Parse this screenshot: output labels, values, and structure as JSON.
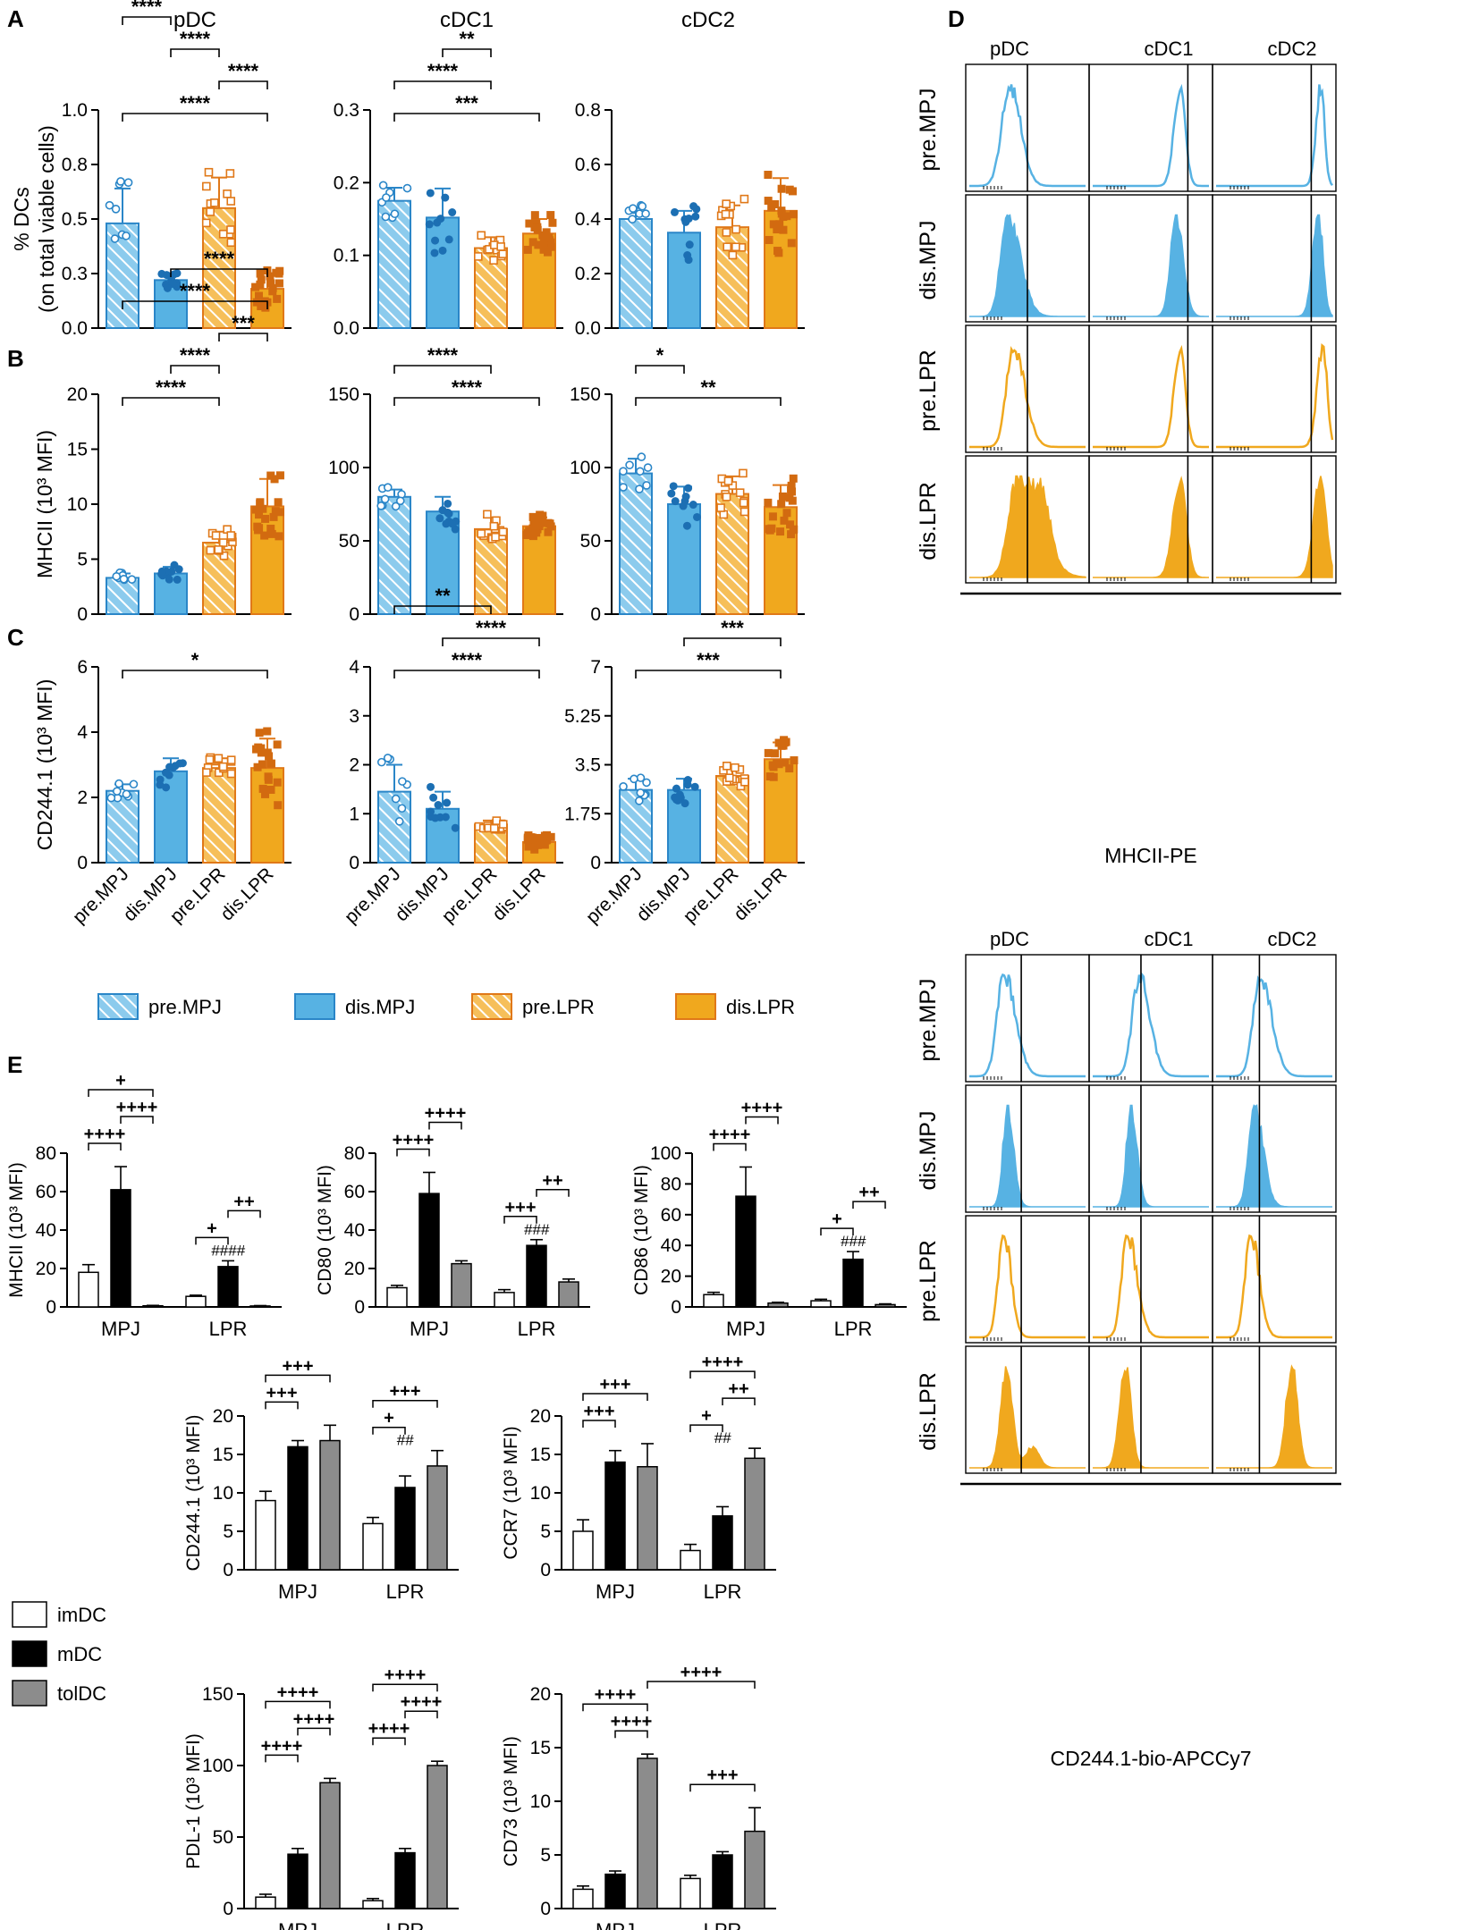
{
  "figure": {
    "panel_labels": [
      "A",
      "B",
      "C",
      "D",
      "E"
    ],
    "groups": [
      "pre.MPJ",
      "dis.MPJ",
      "pre.LPR",
      "dis.LPR"
    ],
    "colors": {
      "mpj": "#57b2e3",
      "mpj_dark": "#2a86c8",
      "lpr": "#f0a81e",
      "lpr_dark": "#e07818",
      "grey": "#8c8c8c"
    },
    "legend_groups": [
      "pre.MPJ",
      "dis.MPJ",
      "pre.LPR",
      "dis.LPR"
    ],
    "legend_dc": [
      "imDC",
      "mDC",
      "tolDC"
    ],
    "d_axis_top": "MHCII-PE",
    "d_axis_bottom": "CD244.1-bio-APCCy7",
    "d_rows": [
      "pre.MPJ",
      "dis.MPJ",
      "pre.LPR",
      "dis.LPR"
    ],
    "d_cols": [
      "pDC",
      "cDC1",
      "cDC2"
    ]
  },
  "chart_data": [
    {
      "id": "A-pDC",
      "type": "bar",
      "title": "pDC",
      "ylabel": "% DCs",
      "ylabel2": "(on total viable cells)",
      "ylim": [
        0,
        1.0
      ],
      "ticks": [
        "0.0",
        "0.3",
        "0.5",
        "0.8",
        "1.0"
      ],
      "tickvals": [
        0,
        0.25,
        0.5,
        0.75,
        1.0
      ],
      "categories": [
        "pre.MPJ",
        "dis.MPJ",
        "pre.LPR",
        "dis.LPR"
      ],
      "values": [
        0.48,
        0.22,
        0.55,
        0.18
      ],
      "errors": [
        0.16,
        0.03,
        0.14,
        0.07
      ],
      "sig": [
        {
          "a": 0,
          "b": 1,
          "label": "****"
        },
        {
          "a": 1,
          "b": 2,
          "label": "****"
        },
        {
          "a": 2,
          "b": 3,
          "label": "****"
        },
        {
          "a": 0,
          "b": 3,
          "label": "****"
        }
      ]
    },
    {
      "id": "A-cDC1",
      "type": "bar",
      "title": "cDC1",
      "ylim": [
        0,
        0.3
      ],
      "ticks": [
        "0.0",
        "0.1",
        "0.2",
        "0.3"
      ],
      "tickvals": [
        0,
        0.1,
        0.2,
        0.3
      ],
      "categories": [
        "pre.MPJ",
        "dis.MPJ",
        "pre.LPR",
        "dis.LPR"
      ],
      "values": [
        0.175,
        0.152,
        0.11,
        0.13
      ],
      "errors": [
        0.018,
        0.04,
        0.015,
        0.02
      ],
      "sig": [
        {
          "a": 1,
          "b": 2,
          "label": "**"
        },
        {
          "a": 0,
          "b": 2,
          "label": "****"
        },
        {
          "a": 0,
          "b": 3,
          "label": "***"
        }
      ]
    },
    {
      "id": "A-cDC2",
      "type": "bar",
      "title": "cDC2",
      "ylim": [
        0,
        0.8
      ],
      "ticks": [
        "0.0",
        "0.2",
        "0.4",
        "0.6",
        "0.8"
      ],
      "tickvals": [
        0,
        0.2,
        0.4,
        0.6,
        0.8
      ],
      "categories": [
        "pre.MPJ",
        "dis.MPJ",
        "pre.LPR",
        "dis.LPR"
      ],
      "values": [
        0.4,
        0.35,
        0.37,
        0.43
      ],
      "errors": [
        0.04,
        0.08,
        0.08,
        0.12
      ],
      "sig": []
    },
    {
      "id": "B-pDC",
      "type": "bar",
      "ylabel": "MHCII (10³ MFI)",
      "ylim": [
        0,
        20
      ],
      "ticks": [
        "0",
        "5",
        "10",
        "15",
        "20"
      ],
      "tickvals": [
        0,
        5,
        10,
        15,
        20
      ],
      "categories": [
        "pre.MPJ",
        "dis.MPJ",
        "pre.LPR",
        "dis.LPR"
      ],
      "values": [
        3.3,
        3.7,
        6.5,
        9.8
      ],
      "errors": [
        0.4,
        0.6,
        1.0,
        2.5
      ],
      "sig": [
        {
          "a": 1,
          "b": 3,
          "label": "****"
        },
        {
          "a": 0,
          "b": 3,
          "label": "****"
        },
        {
          "a": 2,
          "b": 3,
          "label": "***"
        },
        {
          "a": 1,
          "b": 2,
          "label": "****"
        },
        {
          "a": 0,
          "b": 2,
          "label": "****"
        }
      ]
    },
    {
      "id": "B-cDC1",
      "type": "bar",
      "ylim": [
        0,
        150
      ],
      "ticks": [
        "0",
        "50",
        "100",
        "150"
      ],
      "tickvals": [
        0,
        50,
        100,
        150
      ],
      "categories": [
        "pre.MPJ",
        "dis.MPJ",
        "pre.LPR",
        "dis.LPR"
      ],
      "values": [
        80,
        70,
        58,
        60
      ],
      "errors": [
        5,
        10,
        8,
        6
      ],
      "sig": [
        {
          "a": 0,
          "b": 2,
          "label": "****"
        },
        {
          "a": 0,
          "b": 3,
          "label": "****"
        }
      ]
    },
    {
      "id": "B-cDC2",
      "type": "bar",
      "ylim": [
        0,
        150
      ],
      "ticks": [
        "0",
        "50",
        "100",
        "150"
      ],
      "tickvals": [
        0,
        50,
        100,
        150
      ],
      "categories": [
        "pre.MPJ",
        "dis.MPJ",
        "pre.LPR",
        "dis.LPR"
      ],
      "values": [
        96,
        75,
        82,
        73
      ],
      "errors": [
        10,
        12,
        12,
        15
      ],
      "sig": [
        {
          "a": 0,
          "b": 1,
          "label": "*"
        },
        {
          "a": 0,
          "b": 3,
          "label": "**"
        }
      ]
    },
    {
      "id": "C-pDC",
      "type": "bar",
      "ylabel": "CD244.1 (10³ MFI)",
      "ylim": [
        0,
        6
      ],
      "ticks": [
        "0",
        "2",
        "4",
        "6"
      ],
      "tickvals": [
        0,
        2,
        4,
        6
      ],
      "categories": [
        "pre.MPJ",
        "dis.MPJ",
        "pre.LPR",
        "dis.LPR"
      ],
      "values": [
        2.2,
        2.8,
        2.9,
        2.9
      ],
      "errors": [
        0.2,
        0.4,
        0.3,
        0.9
      ],
      "sig": [
        {
          "a": 0,
          "b": 3,
          "label": "*"
        }
      ],
      "xlabels": true
    },
    {
      "id": "C-cDC1",
      "type": "bar",
      "ylim": [
        0,
        4
      ],
      "ticks": [
        "0",
        "1",
        "2",
        "3",
        "4"
      ],
      "tickvals": [
        0,
        1,
        2,
        3,
        4
      ],
      "categories": [
        "pre.MPJ",
        "dis.MPJ",
        "pre.LPR",
        "dis.LPR"
      ],
      "values": [
        1.45,
        1.1,
        0.78,
        0.42
      ],
      "errors": [
        0.55,
        0.35,
        0.08,
        0.12
      ],
      "sig": [
        {
          "a": 0,
          "b": 2,
          "label": "**"
        },
        {
          "a": 1,
          "b": 3,
          "label": "****"
        },
        {
          "a": 0,
          "b": 3,
          "label": "****"
        }
      ],
      "xlabels": true
    },
    {
      "id": "C-cDC2",
      "type": "bar",
      "ylim": [
        0,
        7
      ],
      "ticks": [
        "0",
        "1.75",
        "3.5",
        "5.25",
        "7"
      ],
      "tickvals": [
        0,
        1.75,
        3.5,
        5.25,
        7
      ],
      "categories": [
        "pre.MPJ",
        "dis.MPJ",
        "pre.LPR",
        "dis.LPR"
      ],
      "values": [
        2.6,
        2.6,
        3.1,
        3.7
      ],
      "errors": [
        0.4,
        0.4,
        0.3,
        0.6
      ],
      "sig": [
        {
          "a": 1,
          "b": 3,
          "label": "***"
        },
        {
          "a": 0,
          "b": 3,
          "label": "***"
        }
      ],
      "xlabels": true
    },
    {
      "id": "E-MHCII",
      "type": "grouped_bar",
      "ylabel": "MHCII (10³ MFI)",
      "ylim": [
        0,
        80
      ],
      "ticks": [
        "0",
        "20",
        "40",
        "60",
        "80"
      ],
      "tickvals": [
        0,
        20,
        40,
        60,
        80
      ],
      "groups": [
        "MPJ",
        "LPR"
      ],
      "series": [
        {
          "name": "imDC",
          "values": [
            18,
            5.5
          ],
          "errors": [
            4,
            0.6
          ]
        },
        {
          "name": "mDC",
          "values": [
            61,
            21
          ],
          "errors": [
            12,
            3
          ]
        },
        {
          "name": "tolDC",
          "values": [
            0.6,
            0.5
          ],
          "errors": [
            0.2,
            0.2
          ]
        }
      ],
      "sig": [
        {
          "g": 0,
          "a": 0,
          "b": 1,
          "label": "++++"
        },
        {
          "g": 0,
          "a": 1,
          "b": 2,
          "label": "++++"
        },
        {
          "g": 0,
          "a": 0,
          "b": 2,
          "label": "+"
        },
        {
          "g": 1,
          "a": 0,
          "b": 1,
          "label": "+"
        },
        {
          "g": 1,
          "a": 1,
          "b": 2,
          "label": "++"
        }
      ],
      "hash": {
        "g": 1,
        "label": "####"
      }
    },
    {
      "id": "E-CD80",
      "type": "grouped_bar",
      "ylabel": "CD80 (10³ MFI)",
      "ylim": [
        0,
        80
      ],
      "ticks": [
        "0",
        "20",
        "40",
        "60",
        "80"
      ],
      "tickvals": [
        0,
        20,
        40,
        60,
        80
      ],
      "groups": [
        "MPJ",
        "LPR"
      ],
      "series": [
        {
          "name": "imDC",
          "values": [
            10,
            7.5
          ],
          "errors": [
            1.2,
            1.5
          ]
        },
        {
          "name": "mDC",
          "values": [
            59,
            32
          ],
          "errors": [
            11,
            3
          ]
        },
        {
          "name": "tolDC",
          "values": [
            22.5,
            13
          ],
          "errors": [
            1.5,
            1.5
          ]
        }
      ],
      "sig": [
        {
          "g": 0,
          "a": 0,
          "b": 1,
          "label": "++++"
        },
        {
          "g": 0,
          "a": 1,
          "b": 2,
          "label": "++++"
        },
        {
          "g": 1,
          "a": 0,
          "b": 1,
          "label": "+++"
        },
        {
          "g": 1,
          "a": 1,
          "b": 2,
          "label": "++"
        }
      ],
      "hash": {
        "g": 1,
        "label": "###"
      }
    },
    {
      "id": "E-CD86",
      "type": "grouped_bar",
      "ylabel": "CD86 (10³ MFI)",
      "ylim": [
        0,
        100
      ],
      "ticks": [
        "0",
        "20",
        "40",
        "60",
        "80",
        "100"
      ],
      "tickvals": [
        0,
        20,
        40,
        60,
        80,
        100
      ],
      "groups": [
        "MPJ",
        "LPR"
      ],
      "series": [
        {
          "name": "imDC",
          "values": [
            8,
            4
          ],
          "errors": [
            1.5,
            1
          ]
        },
        {
          "name": "mDC",
          "values": [
            72,
            31
          ],
          "errors": [
            19,
            5
          ]
        },
        {
          "name": "tolDC",
          "values": [
            2.5,
            1.5
          ],
          "errors": [
            0.5,
            0.5
          ]
        }
      ],
      "sig": [
        {
          "g": 0,
          "a": 0,
          "b": 1,
          "label": "++++"
        },
        {
          "g": 0,
          "a": 1,
          "b": 2,
          "label": "++++"
        },
        {
          "g": 1,
          "a": 0,
          "b": 1,
          "label": "+"
        },
        {
          "g": 1,
          "a": 1,
          "b": 2,
          "label": "++"
        }
      ],
      "hash": {
        "g": 1,
        "label": "###"
      }
    },
    {
      "id": "E-CD244",
      "type": "grouped_bar",
      "ylabel": "CD244.1 (10³ MFI)",
      "ylim": [
        0,
        20
      ],
      "ticks": [
        "0",
        "5",
        "10",
        "15",
        "20"
      ],
      "tickvals": [
        0,
        5,
        10,
        15,
        20
      ],
      "groups": [
        "MPJ",
        "LPR"
      ],
      "series": [
        {
          "name": "imDC",
          "values": [
            9,
            6
          ]
        },
        {
          "name": "mDC",
          "values": [
            16,
            10.7
          ]
        },
        {
          "name": "tolDC",
          "values": [
            16.8,
            13.5
          ]
        }
      ],
      "errors": [
        [
          1.2,
          0.8
        ],
        [
          0.8,
          1.5
        ],
        [
          2,
          2
        ]
      ],
      "sig": [
        {
          "g": 0,
          "a": 0,
          "b": 1,
          "label": "+++"
        },
        {
          "g": 0,
          "a": 0,
          "b": 2,
          "label": "+++"
        },
        {
          "g": 1,
          "a": 0,
          "b": 1,
          "label": "+"
        },
        {
          "g": 1,
          "a": 0,
          "b": 2,
          "label": "+++"
        }
      ],
      "hash": {
        "g": 1,
        "label": "##"
      }
    },
    {
      "id": "E-CCR7",
      "type": "grouped_bar",
      "ylabel": "CCR7 (10³ MFI)",
      "ylim": [
        0,
        20
      ],
      "ticks": [
        "0",
        "5",
        "10",
        "15",
        "20"
      ],
      "tickvals": [
        0,
        5,
        10,
        15,
        20
      ],
      "groups": [
        "MPJ",
        "LPR"
      ],
      "series": [
        {
          "name": "imDC",
          "values": [
            5,
            2.5
          ]
        },
        {
          "name": "mDC",
          "values": [
            14,
            7
          ]
        },
        {
          "name": "tolDC",
          "values": [
            13.4,
            14.5
          ]
        }
      ],
      "errors": [
        [
          1.5,
          0.8
        ],
        [
          1.5,
          1.2
        ],
        [
          3,
          1.3
        ]
      ],
      "sig": [
        {
          "g": 0,
          "a": 0,
          "b": 1,
          "label": "+++"
        },
        {
          "g": 0,
          "a": 0,
          "b": 2,
          "label": "+++"
        },
        {
          "g": 1,
          "a": 0,
          "b": 1,
          "label": "+"
        },
        {
          "g": 1,
          "a": 1,
          "b": 2,
          "label": "++"
        },
        {
          "g": 1,
          "a": 0,
          "b": 2,
          "label": "++++"
        }
      ],
      "hash": {
        "g": 1,
        "label": "##"
      }
    },
    {
      "id": "E-PDL1",
      "type": "grouped_bar",
      "ylabel": "PDL-1 (10³ MFI)",
      "ylim": [
        0,
        150
      ],
      "ticks": [
        "0",
        "50",
        "100",
        "150"
      ],
      "tickvals": [
        0,
        50,
        100,
        150
      ],
      "groups": [
        "MPJ",
        "LPR"
      ],
      "series": [
        {
          "name": "imDC",
          "values": [
            8,
            5.5
          ]
        },
        {
          "name": "mDC",
          "values": [
            38,
            39
          ]
        },
        {
          "name": "tolDC",
          "values": [
            88,
            100
          ]
        }
      ],
      "errors": [
        [
          2,
          1.5
        ],
        [
          4,
          3
        ],
        [
          3,
          3
        ]
      ],
      "sig": [
        {
          "g": 0,
          "a": 0,
          "b": 1,
          "label": "++++"
        },
        {
          "g": 0,
          "a": 1,
          "b": 2,
          "label": "++++"
        },
        {
          "g": 0,
          "a": 0,
          "b": 2,
          "label": "++++"
        },
        {
          "g": 1,
          "a": 0,
          "b": 1,
          "label": "++++"
        },
        {
          "g": 1,
          "a": 1,
          "b": 2,
          "label": "++++"
        },
        {
          "g": 1,
          "a": 0,
          "b": 2,
          "label": "++++"
        }
      ]
    },
    {
      "id": "E-CD73",
      "type": "grouped_bar",
      "ylabel": "CD73 (10³ MFI)",
      "ylim": [
        0,
        20
      ],
      "ticks": [
        "0",
        "5",
        "10",
        "15",
        "20"
      ],
      "tickvals": [
        0,
        5,
        10,
        15,
        20
      ],
      "groups": [
        "MPJ",
        "LPR"
      ],
      "series": [
        {
          "name": "imDC",
          "values": [
            1.8,
            2.8
          ]
        },
        {
          "name": "mDC",
          "values": [
            3.2,
            5
          ]
        },
        {
          "name": "tolDC",
          "values": [
            14,
            7.2
          ]
        }
      ],
      "errors": [
        [
          0.3,
          0.3
        ],
        [
          0.3,
          0.3
        ],
        [
          0.4,
          2.2
        ]
      ],
      "sig": [
        {
          "g": 0,
          "a": 1,
          "b": 2,
          "label": "++++"
        },
        {
          "g": 0,
          "a": 0,
          "b": 2,
          "label": "++++"
        },
        {
          "g": 1,
          "a": 0,
          "b": 2,
          "label": "+++"
        }
      ],
      "cross": {
        "label": "++++"
      }
    }
  ]
}
